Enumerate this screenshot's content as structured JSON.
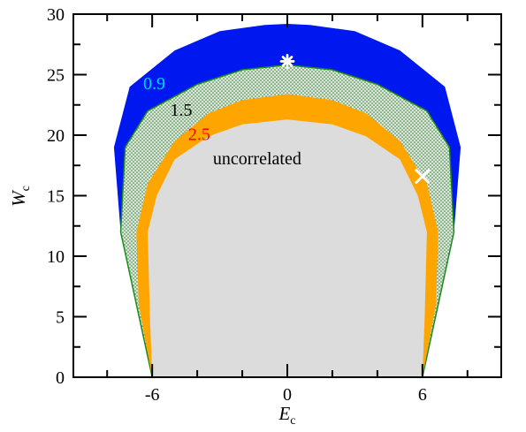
{
  "chart_data": {
    "type": "area",
    "xlabel": "E",
    "xlabel_sub": "c",
    "ylabel": "W",
    "ylabel_sub": "c",
    "xlim": [
      -9.5,
      9.5
    ],
    "ylim": [
      0,
      30
    ],
    "x_ticks": [
      -6,
      0,
      6
    ],
    "x_tick_labels": [
      "-6",
      "0",
      "6"
    ],
    "y_ticks": [
      0,
      5,
      10,
      15,
      20,
      25,
      30
    ],
    "y_tick_labels": [
      "0",
      "5",
      "10",
      "15",
      "20",
      "25",
      "30"
    ],
    "regions": [
      {
        "label": "0.9",
        "label_pos": [
          -6.4,
          23.8
        ],
        "label_color": "#00d8ff",
        "fill": "#0018f0",
        "points": [
          [
            -6,
            0
          ],
          [
            -7.4,
            12
          ],
          [
            -7.7,
            19
          ],
          [
            -7,
            24
          ],
          [
            -5,
            27
          ],
          [
            -3,
            28.6
          ],
          [
            -1,
            29.1
          ],
          [
            0,
            29.2
          ],
          [
            1,
            29.1
          ],
          [
            3,
            28.6
          ],
          [
            5,
            27
          ],
          [
            7,
            24
          ],
          [
            7.7,
            19
          ],
          [
            7.4,
            12
          ],
          [
            6,
            0
          ]
        ]
      },
      {
        "label": "1.5",
        "label_pos": [
          -5.2,
          21.6
        ],
        "label_color": "#000000",
        "fill": "#e0e0e0",
        "pattern": "dots",
        "pattern_color": "#1a8a1a",
        "outline": "#1a8a1a",
        "points": [
          [
            -6,
            0
          ],
          [
            -7.4,
            12
          ],
          [
            -7.2,
            19
          ],
          [
            -6.2,
            22
          ],
          [
            -4,
            24.2
          ],
          [
            -2,
            25.4
          ],
          [
            0,
            25.8
          ],
          [
            2,
            25.4
          ],
          [
            4,
            24.2
          ],
          [
            6.2,
            22
          ],
          [
            7.2,
            19
          ],
          [
            7.4,
            12
          ],
          [
            6,
            0
          ]
        ]
      },
      {
        "label": "2.5",
        "label_pos": [
          -4.4,
          19.6
        ],
        "label_color": "#ff0000",
        "fill": "#ffa500",
        "points": [
          [
            -6,
            0
          ],
          [
            -6.6,
            6
          ],
          [
            -6.7,
            12
          ],
          [
            -6.2,
            16
          ],
          [
            -5,
            19.5
          ],
          [
            -3.5,
            21.8
          ],
          [
            -2,
            22.9
          ],
          [
            0,
            23.4
          ],
          [
            2,
            22.9
          ],
          [
            3.5,
            21.8
          ],
          [
            5,
            19.5
          ],
          [
            6.2,
            16
          ],
          [
            6.7,
            12
          ],
          [
            6.6,
            6
          ],
          [
            6,
            0
          ]
        ]
      },
      {
        "label": "uncorrelated",
        "label_pos": [
          -3.3,
          17.6
        ],
        "label_color": "#000000",
        "fill": "#dcdcdc",
        "points": [
          [
            -6,
            0
          ],
          [
            -6.1,
            5
          ],
          [
            -6.2,
            12
          ],
          [
            -5.8,
            15
          ],
          [
            -5,
            18
          ],
          [
            -3.5,
            19.9
          ],
          [
            -2,
            20.9
          ],
          [
            0,
            21.3
          ],
          [
            2,
            20.9
          ],
          [
            3.5,
            19.9
          ],
          [
            5,
            18
          ],
          [
            5.8,
            15
          ],
          [
            6.2,
            12
          ],
          [
            6.1,
            5
          ],
          [
            6,
            0
          ]
        ]
      }
    ],
    "markers": [
      {
        "symbol": "asterisk",
        "x": 0,
        "y": 26.1,
        "color": "#ffffff"
      },
      {
        "symbol": "cross",
        "x": 6,
        "y": 16.6,
        "color": "#ffffff"
      }
    ]
  }
}
